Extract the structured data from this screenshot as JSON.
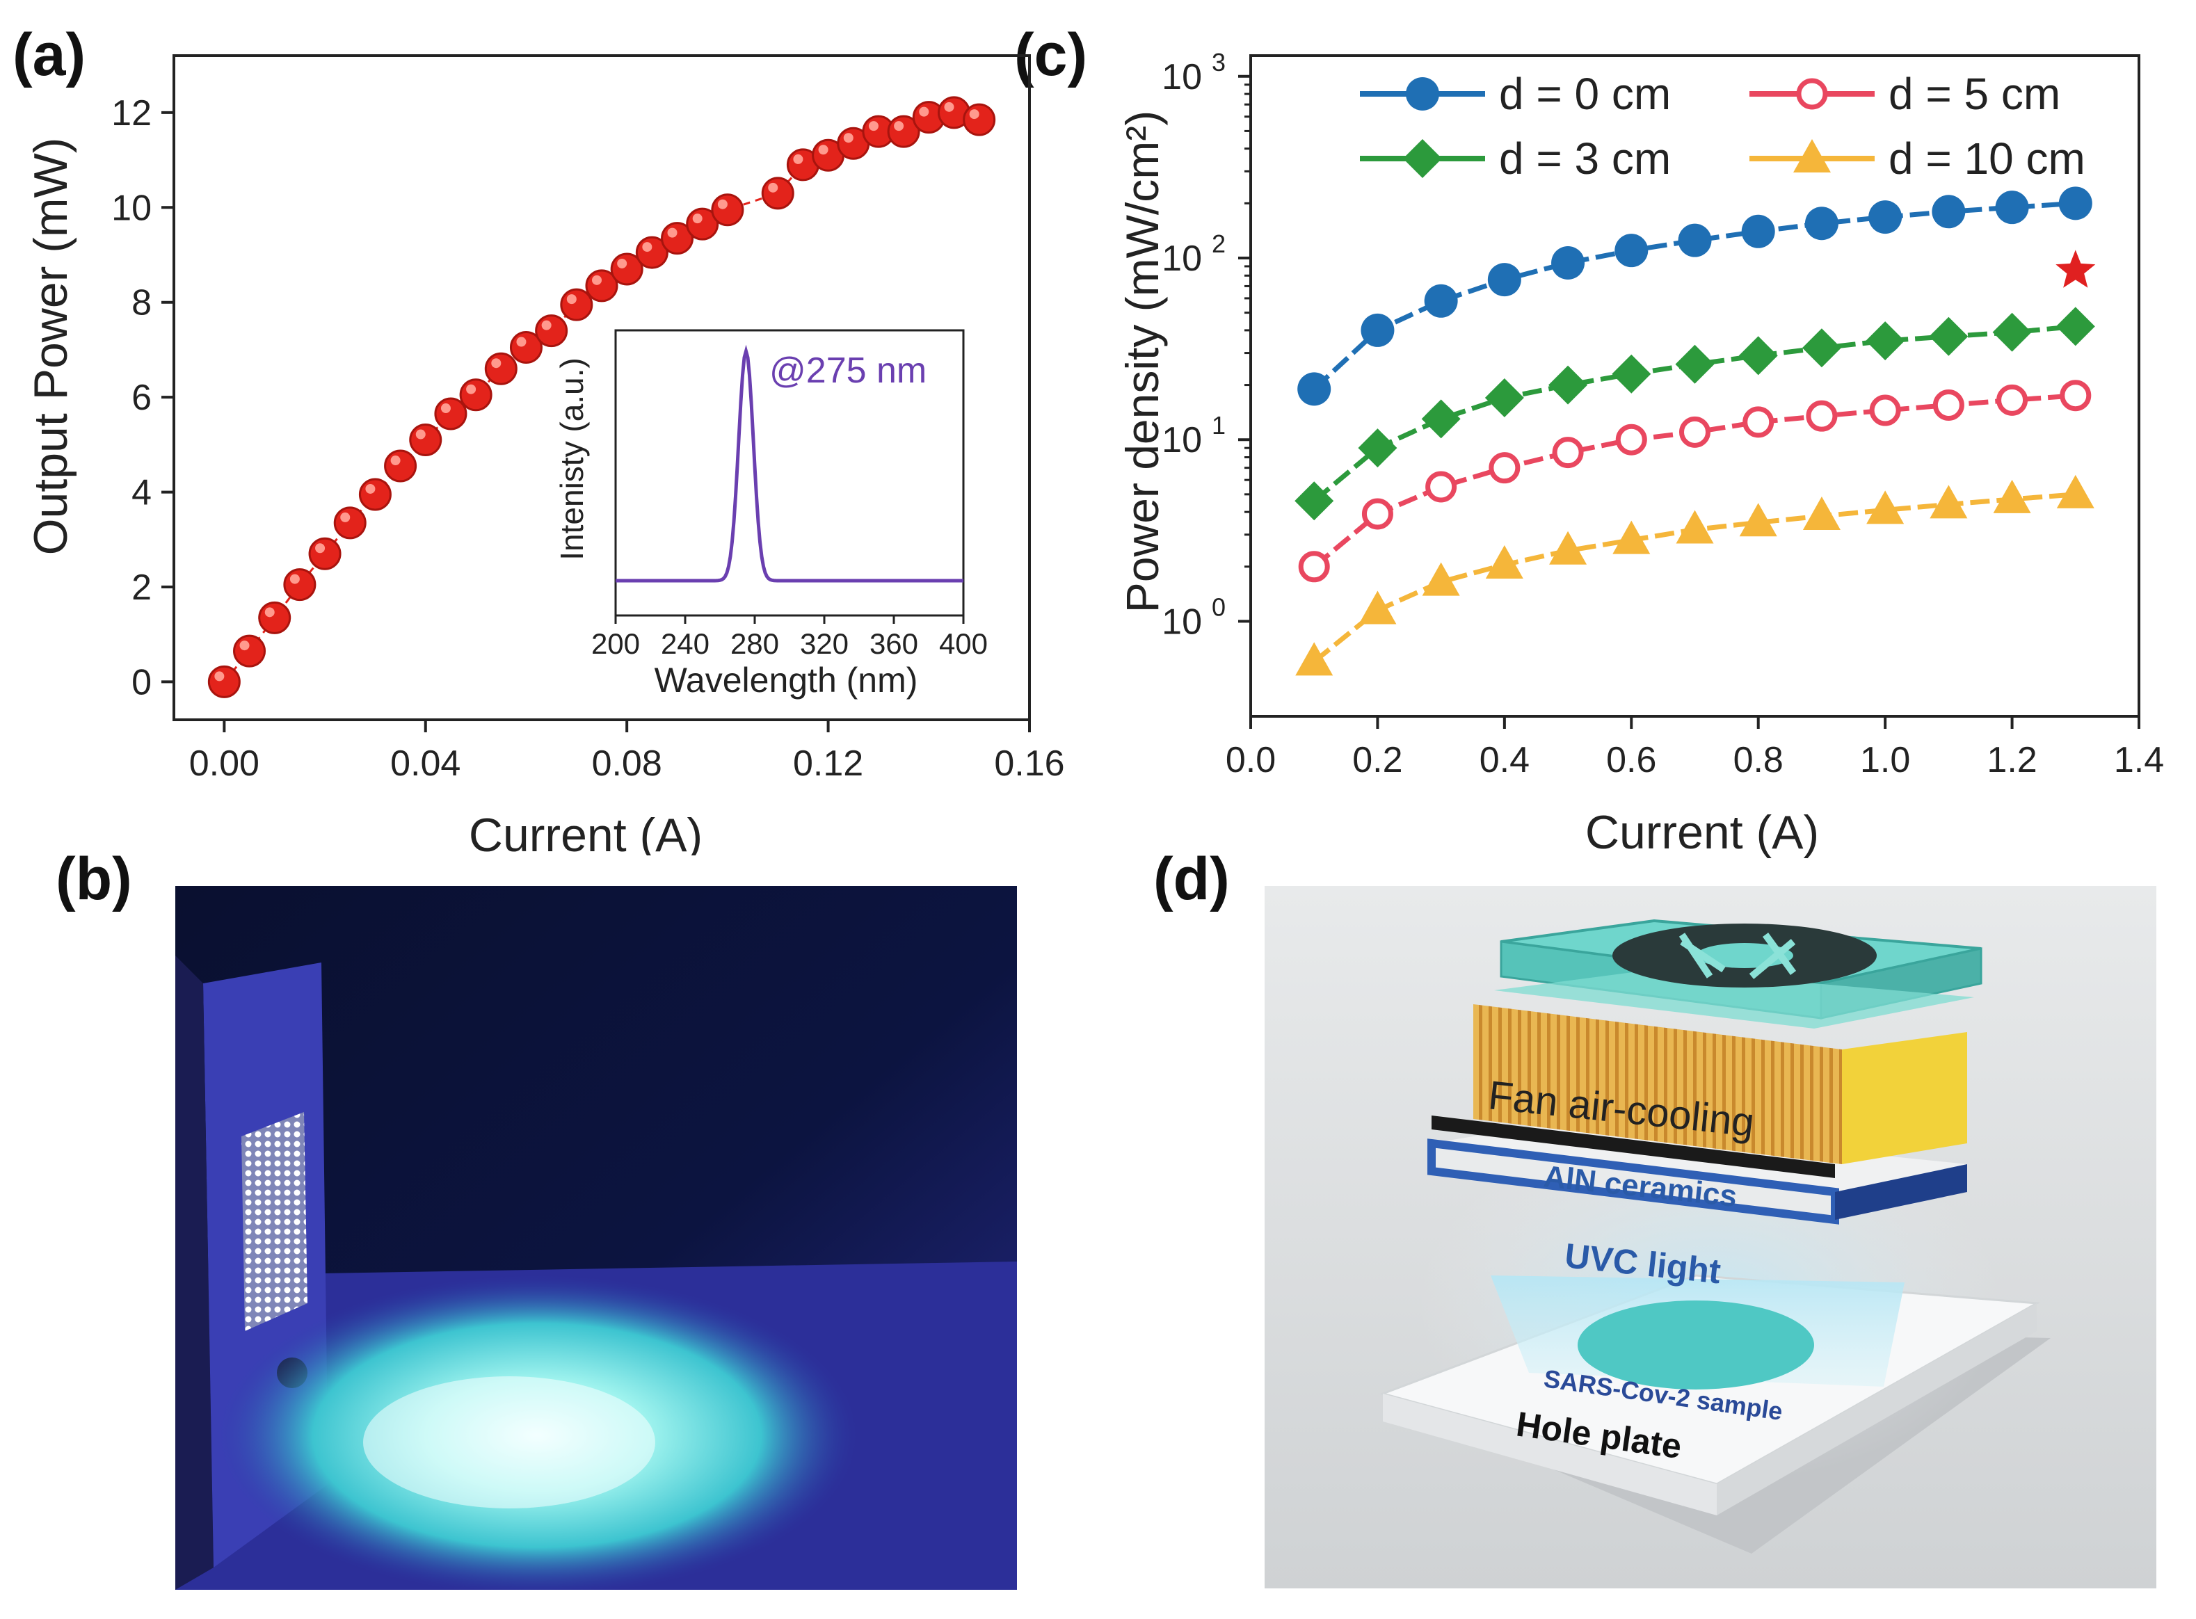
{
  "panels": {
    "a": {
      "label": "(a)"
    },
    "b": {
      "label": "(b)"
    },
    "c": {
      "label": "(c)"
    },
    "d": {
      "label": "(d)"
    }
  },
  "colors": {
    "red_marker": "#e3231b",
    "inset_line": "#6a3fb0",
    "blue": "#1f6fb4",
    "pink": "#e9475f",
    "green": "#2c9a3c",
    "orange": "#f5b63a",
    "star": "#e02020"
  },
  "chart_data": [
    {
      "id": "a",
      "type": "scatter",
      "title": "",
      "xlabel": "Current (A)",
      "ylabel": "Output Power (mW)",
      "xlim": [
        -0.01,
        0.16
      ],
      "ylim": [
        -0.8,
        13.2
      ],
      "xticks": [
        0.0,
        0.04,
        0.08,
        0.12,
        0.16
      ],
      "xtick_labels": [
        "0.00",
        "0.04",
        "0.08",
        "0.12",
        "0.16"
      ],
      "yticks": [
        0,
        2,
        4,
        6,
        8,
        10,
        12
      ],
      "ytick_labels": [
        "0",
        "2",
        "4",
        "6",
        "8",
        "10",
        "12"
      ],
      "x": [
        0.0,
        0.005,
        0.01,
        0.015,
        0.02,
        0.025,
        0.03,
        0.035,
        0.04,
        0.045,
        0.05,
        0.055,
        0.06,
        0.065,
        0.07,
        0.075,
        0.08,
        0.085,
        0.09,
        0.095,
        0.1,
        0.11,
        0.115,
        0.12,
        0.125,
        0.13,
        0.135,
        0.14,
        0.145,
        0.15
      ],
      "y": [
        0.0,
        0.65,
        1.35,
        2.05,
        2.7,
        3.35,
        3.95,
        4.55,
        5.1,
        5.65,
        6.05,
        6.6,
        7.05,
        7.4,
        7.95,
        8.35,
        8.7,
        9.05,
        9.35,
        9.65,
        9.95,
        10.3,
        10.9,
        11.1,
        11.35,
        11.6,
        11.6,
        11.9,
        12.0,
        11.85
      ],
      "inset": {
        "type": "line",
        "xlabel": "Wavelength (nm)",
        "ylabel": "Intenisty (a.u.)",
        "annotation": "@275 nm",
        "xlim": [
          200,
          400
        ],
        "xticks": [
          200,
          240,
          280,
          320,
          360,
          400
        ],
        "xtick_labels": [
          "200",
          "240",
          "280",
          "320",
          "360",
          "400"
        ],
        "peak_nm": 275,
        "fwhm_nm": 10
      }
    },
    {
      "id": "c",
      "type": "line",
      "yscale": "log",
      "xlabel": "Current (A)",
      "ylabel": "Power density (mW/cm²)",
      "xlim": [
        0.0,
        1.4
      ],
      "ylim": [
        0.3,
        1300
      ],
      "xticks": [
        0.0,
        0.2,
        0.4,
        0.6,
        0.8,
        1.0,
        1.2,
        1.4
      ],
      "xtick_labels": [
        "0.0",
        "0.2",
        "0.4",
        "0.6",
        "0.8",
        "1.0",
        "1.2",
        "1.4"
      ],
      "ytick_base": "10",
      "ytick_exponents": [
        "0",
        "1",
        "2",
        "3"
      ],
      "x": [
        0.1,
        0.2,
        0.3,
        0.4,
        0.5,
        0.6,
        0.7,
        0.8,
        0.9,
        1.0,
        1.1,
        1.2,
        1.3
      ],
      "series": [
        {
          "name": "d = 0 cm",
          "marker": "circle",
          "color": "#1f6fb4",
          "values": [
            19,
            40,
            58,
            76,
            94,
            110,
            125,
            140,
            155,
            168,
            180,
            190,
            200
          ]
        },
        {
          "name": "d = 5 cm",
          "marker": "open-circle",
          "color": "#e9475f",
          "values": [
            2.0,
            3.9,
            5.5,
            7.0,
            8.5,
            10,
            11,
            12.5,
            13.5,
            14.5,
            15.5,
            16.5,
            17.5
          ]
        },
        {
          "name": "d = 3 cm",
          "marker": "diamond",
          "color": "#2c9a3c",
          "values": [
            4.6,
            9.0,
            13,
            17,
            20,
            23,
            26,
            29,
            32,
            35,
            37,
            39,
            42
          ]
        },
        {
          "name": "d = 10 cm",
          "marker": "triangle",
          "color": "#f5b63a",
          "values": [
            0.6,
            1.15,
            1.65,
            2.05,
            2.45,
            2.8,
            3.2,
            3.5,
            3.8,
            4.1,
            4.4,
            4.7,
            5.0
          ]
        }
      ],
      "star": {
        "x": 1.3,
        "y": 85
      },
      "legend_position": "top"
    }
  ],
  "diagram_d": {
    "fan_label": "Fan air-cooling",
    "aln_label": "AlN ceramics",
    "uvc_label": "UVC light",
    "sample_label": "SARS-Cov-2 sample",
    "plate_label": "Hole plate"
  }
}
